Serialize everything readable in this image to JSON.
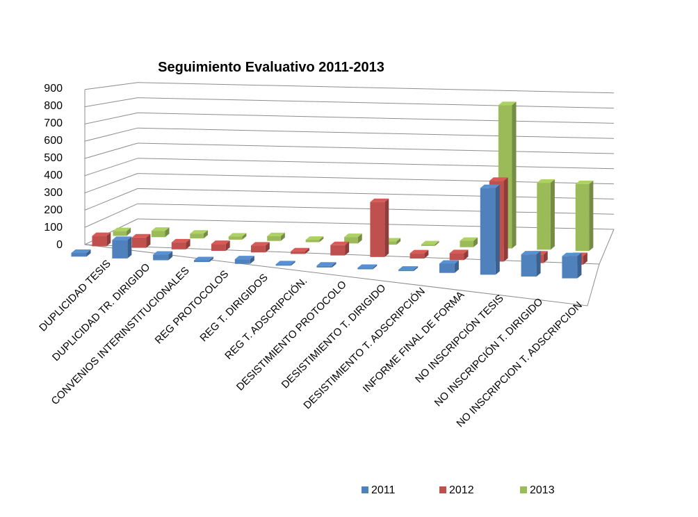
{
  "chart_data": {
    "type": "bar",
    "subtype": "3d-clustered-column",
    "title": "Seguimiento Evaluativo 2011-2013",
    "xlabel": "",
    "ylabel": "",
    "ylim": [
      0,
      900
    ],
    "yticks": [
      "0",
      "100",
      "200",
      "300",
      "400",
      "500",
      "600",
      "700",
      "800",
      "900"
    ],
    "grid": true,
    "legend_position": "bottom",
    "categories": [
      "DUPLICIDAD TESIS",
      "DUPLICIDAD TR. DIRIGIDO",
      "CONVENIOS INTERINSTITUCIONALES",
      "REG PROTOCOLOS",
      "REG T. DIRIGIDOS",
      "REG T. ADSCRIPCIÓN.",
      "DESISTIMIENTO PROTOCOLO",
      "DESISTIMIENTO T. DIRIGIDO",
      "DESISTIMIENTO T. ADSCRIPCIÓN",
      "INFORME FINAL DE FORMA",
      "NO INSCRIPCIÓN TESIS",
      "NO INSCRIPCIÓN T. DIRIGIDO",
      "NO INSCRIPCION T. ADSCRIPCION"
    ],
    "series": [
      {
        "name": "2011",
        "color": "#4F81BD",
        "values": [
          20,
          100,
          30,
          10,
          25,
          5,
          10,
          5,
          5,
          50,
          470,
          120,
          120
        ]
      },
      {
        "name": "2012",
        "color": "#C0504D",
        "values": [
          60,
          60,
          40,
          40,
          40,
          15,
          60,
          320,
          30,
          40,
          470,
          50,
          50
        ]
      },
      {
        "name": "2013",
        "color": "#9BBB59",
        "values": [
          30,
          40,
          30,
          20,
          30,
          15,
          40,
          20,
          10,
          40,
          900,
          420,
          420
        ]
      }
    ]
  }
}
